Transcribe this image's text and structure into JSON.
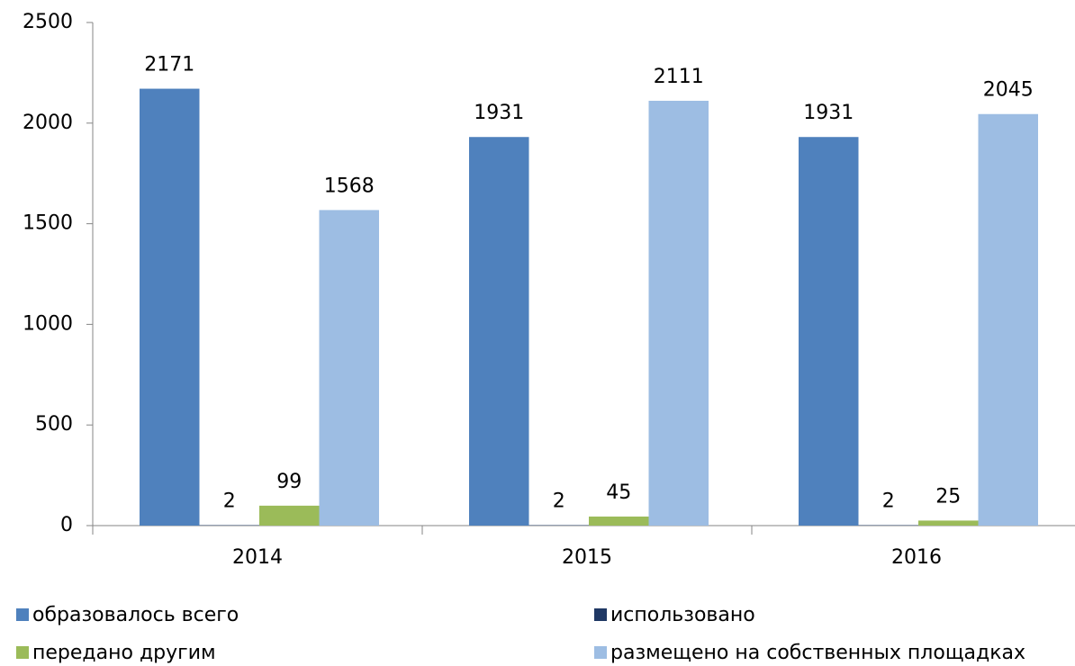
{
  "chart_data": {
    "type": "bar",
    "categories": [
      "2014",
      "2015",
      "2016"
    ],
    "series": [
      {
        "name": "образовалось всего",
        "color": "#4f81bd",
        "values": [
          2171,
          1931,
          1931
        ]
      },
      {
        "name": "использовано",
        "color": "#1f3864",
        "values": [
          2,
          2,
          2
        ]
      },
      {
        "name": "передано другим",
        "color": "#9bbb59",
        "values": [
          99,
          45,
          25
        ]
      },
      {
        "name": "размещено на собственных площадках",
        "color": "#9dbde3",
        "values": [
          1568,
          2111,
          2045
        ]
      }
    ],
    "ylim": [
      0,
      2500
    ],
    "yticks": [
      0,
      500,
      1000,
      1500,
      2000,
      2500
    ],
    "grid": false,
    "legend": "bottom"
  }
}
